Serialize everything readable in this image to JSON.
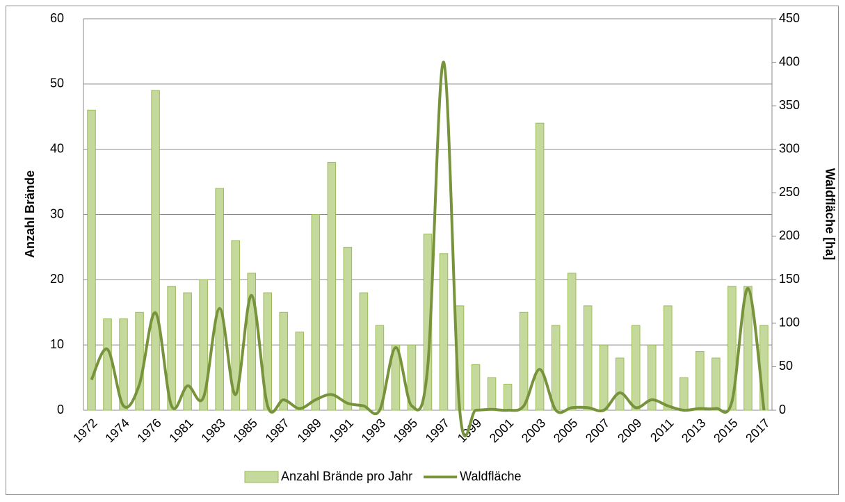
{
  "chart_data": {
    "type": "bar_line",
    "categories": [
      "1972",
      null,
      "1974",
      null,
      "1976",
      null,
      "1981",
      null,
      "1983",
      null,
      "1985",
      null,
      "1987",
      null,
      "1989",
      null,
      "1991",
      null,
      "1993",
      null,
      "1995",
      null,
      "1997",
      null,
      "1999",
      null,
      "2001",
      null,
      "2003",
      null,
      "2005",
      null,
      "2007",
      null,
      "2009",
      null,
      "2011",
      null,
      "2013",
      null,
      "2015",
      null,
      "2017"
    ],
    "series": [
      {
        "name": "Anzahl Brände pro Jahr",
        "type": "bar",
        "color": "#c4d99b",
        "stroke": "#9bbb59",
        "axis": "y",
        "values": [
          46,
          14,
          14,
          15,
          49,
          19,
          18,
          20,
          34,
          26,
          21,
          18,
          15,
          12,
          30,
          38,
          25,
          18,
          13,
          10,
          10,
          27,
          24,
          16,
          7,
          5,
          4,
          15,
          44,
          13,
          21,
          16,
          10,
          8,
          13,
          10,
          16,
          5,
          9,
          8,
          19,
          19,
          13
        ]
      },
      {
        "name": "Waldfläche",
        "type": "line",
        "color": "#77933c",
        "axis": "y2",
        "values": [
          35,
          70,
          5,
          30,
          112,
          5,
          28,
          15,
          117,
          18,
          132,
          5,
          12,
          2,
          12,
          18,
          8,
          5,
          0,
          72,
          5,
          50,
          400,
          0,
          0,
          1,
          0,
          5,
          47,
          0,
          3,
          3,
          0,
          20,
          3,
          12,
          5,
          0,
          2,
          2,
          10,
          140,
          0
        ]
      }
    ],
    "y_label": "Anzahl Brände",
    "y2_label": "Waldfläche [ha]",
    "ylim": [
      0,
      60
    ],
    "yticks": [
      0,
      10,
      20,
      30,
      40,
      50,
      60
    ],
    "y2lim": [
      0,
      450
    ],
    "y2ticks": [
      0,
      50,
      100,
      150,
      200,
      250,
      300,
      350,
      400,
      450
    ],
    "grid": true,
    "legend": "bottom"
  }
}
